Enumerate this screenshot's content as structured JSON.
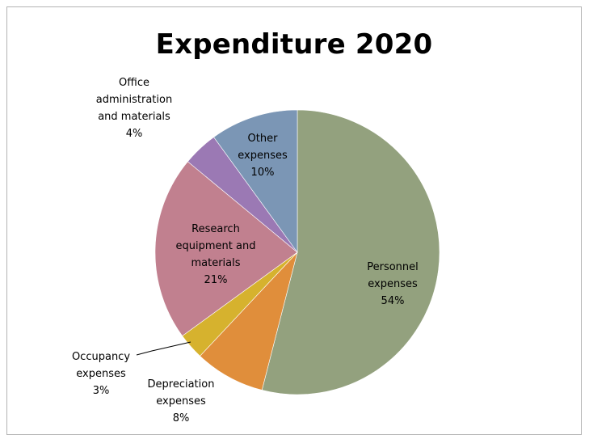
{
  "chart_data": {
    "type": "pie",
    "title": "Expenditure 2020",
    "slices": [
      {
        "label": "Personnel expenses",
        "value": 54,
        "color": "#93a17e"
      },
      {
        "label": "Depreciation expenses",
        "value": 8,
        "color": "#e08e3b"
      },
      {
        "label": "Occupancy expenses",
        "value": 3,
        "color": "#d6b22e"
      },
      {
        "label": "Research equipment and materials",
        "value": 21,
        "color": "#c1808f"
      },
      {
        "label": "Office administration and materials",
        "value": 4,
        "color": "#9b79b4"
      },
      {
        "label": "Other expenses",
        "value": 10,
        "color": "#7b96b5"
      }
    ],
    "data_labels": [
      {
        "lines": [
          "Personnel",
          "expenses",
          "54%"
        ]
      },
      {
        "lines": [
          "Depreciation",
          "expenses",
          "8%"
        ]
      },
      {
        "lines": [
          "Occupancy",
          "expenses",
          "3%"
        ]
      },
      {
        "lines": [
          "Research",
          "equipment and",
          "materials",
          "21%"
        ]
      },
      {
        "lines": [
          "Office",
          "administration",
          "and materials",
          "4%"
        ]
      },
      {
        "lines": [
          "Other",
          "expenses",
          "10%"
        ]
      }
    ],
    "unit": "%",
    "legend": "none"
  }
}
